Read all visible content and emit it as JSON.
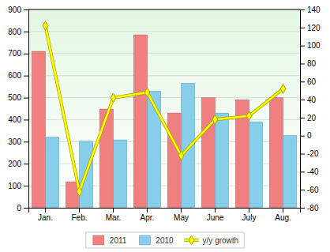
{
  "chart_data": {
    "type": "bar",
    "categories": [
      "Jan.",
      "Feb.",
      "Mar.",
      "Apr.",
      "May",
      "June",
      "July",
      "Aug."
    ],
    "series": [
      {
        "name": "2011",
        "type": "bar",
        "color": "#f08080",
        "values": [
          710,
          118,
          448,
          785,
          430,
          500,
          490,
          500
        ]
      },
      {
        "name": "2010",
        "type": "bar",
        "color": "#87ceeb",
        "values": [
          320,
          302,
          308,
          530,
          565,
          430,
          390,
          328
        ]
      },
      {
        "name": "y/y growth",
        "type": "line",
        "axis": "y2",
        "color": "#ffff00",
        "marker": "diamond",
        "values": [
          122,
          -62,
          42,
          48,
          -22,
          18,
          22,
          52
        ]
      }
    ],
    "ylim": [
      0,
      900
    ],
    "yticks": [
      0,
      100,
      200,
      300,
      400,
      500,
      600,
      700,
      800,
      900
    ],
    "y2lim": [
      -80,
      140
    ],
    "y2ticks": [
      -80,
      -60,
      -40,
      -20,
      0,
      20,
      40,
      60,
      80,
      100,
      120,
      140
    ],
    "grid": true,
    "legend": "bottom"
  }
}
